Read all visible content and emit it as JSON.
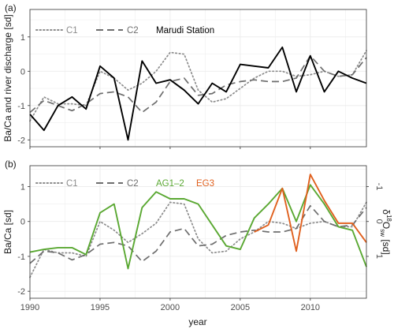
{
  "figure": {
    "xlabel": "year",
    "x_ticks": [
      1990,
      1995,
      2000,
      2005,
      2010
    ],
    "xlim": [
      1990,
      2014
    ]
  },
  "colors": {
    "c1": "#8c8c8c",
    "c2": "#6e6e6e",
    "marudi": "#000000",
    "ag": "#5aa832",
    "eg": "#e0601e",
    "grid": "#ebebeb",
    "frame": "#333333"
  },
  "chart_data": [
    {
      "panel_label": "(a)",
      "type": "line",
      "ylabel": "Ba/Ca and river discharge [sd]",
      "ylim": [
        -2.2,
        1.8
      ],
      "y_ticks": [
        -2,
        -1,
        0,
        1
      ],
      "grid": true,
      "legend_position": "top-left",
      "series": [
        {
          "name": "C1",
          "style": "dotted",
          "color_key": "c1",
          "x": [
            1990,
            1991,
            1992,
            1993,
            1994,
            1995,
            1996,
            1997,
            1998,
            1999,
            2000,
            2001,
            2002,
            2003,
            2004,
            2005,
            2006,
            2007,
            2008,
            2009,
            2010,
            2011,
            2012,
            2013,
            2014
          ],
          "y": [
            -1.45,
            -0.75,
            -0.95,
            -0.95,
            -1.0,
            0.0,
            -0.2,
            -0.55,
            -0.35,
            0.0,
            0.55,
            0.5,
            -0.55,
            -0.9,
            -0.8,
            -0.5,
            -0.2,
            0.0,
            0.0,
            -0.15,
            -0.1,
            0.0,
            -0.15,
            -0.1,
            0.6
          ]
        },
        {
          "name": "C2",
          "style": "dashed",
          "color_key": "c2",
          "x": [
            1990,
            1991,
            1992,
            1993,
            1994,
            1995,
            1996,
            1997,
            1998,
            1999,
            2000,
            2001,
            2002,
            2003,
            2004,
            2005,
            2006,
            2007,
            2008,
            2009,
            2010,
            2011,
            2012,
            2013,
            2014
          ],
          "y": [
            -1.2,
            -0.85,
            -1.0,
            -1.15,
            -0.95,
            -0.65,
            -0.6,
            -0.75,
            -1.2,
            -0.9,
            -0.3,
            -0.2,
            -0.7,
            -0.65,
            -0.4,
            -0.3,
            -0.25,
            -0.3,
            -0.3,
            -0.2,
            0.45,
            0.0,
            -0.15,
            -0.1,
            0.4
          ]
        },
        {
          "name": "Marudi Station",
          "style": "solid",
          "color_key": "marudi",
          "x": [
            1990,
            1991,
            1992,
            1993,
            1994,
            1995,
            1996,
            1997,
            1998,
            1999,
            2000,
            2001,
            2002,
            2003,
            2004,
            2005,
            2006,
            2007,
            2008,
            2009,
            2010,
            2011,
            2012,
            2013,
            2014
          ],
          "y": [
            -1.25,
            -1.72,
            -1.0,
            -0.75,
            -1.1,
            0.15,
            -0.2,
            -2.0,
            0.3,
            -0.35,
            -0.25,
            -0.55,
            -0.95,
            -0.35,
            -0.6,
            0.2,
            0.15,
            0.1,
            0.7,
            -0.6,
            0.45,
            -0.6,
            0.0,
            -0.2,
            -0.35
          ]
        }
      ]
    },
    {
      "panel_label": "(b)",
      "type": "line",
      "ylabel": "Ba/Ca [sd]",
      "y2label_parts": [
        "δ",
        "18",
        "O",
        "sw",
        " [sd]"
      ],
      "ylim": [
        -2.2,
        1.6
      ],
      "y_ticks": [
        -2,
        -1,
        0,
        1
      ],
      "y2_ticks": [
        "-1",
        "0",
        "1"
      ],
      "y2_tick_values": [
        1,
        0,
        -1
      ],
      "grid": true,
      "legend_position": "top",
      "series": [
        {
          "name": "C1",
          "style": "dotted",
          "color_key": "c1",
          "x": [
            1990,
            1991,
            1992,
            1993,
            1994,
            1995,
            1996,
            1997,
            1998,
            1999,
            2000,
            2001,
            2002,
            2003,
            2004,
            2005,
            2006,
            2007,
            2008,
            2009,
            2010,
            2011,
            2012,
            2013,
            2014
          ],
          "y": [
            -1.6,
            -0.8,
            -0.9,
            -0.9,
            -1.0,
            0.0,
            -0.25,
            -0.6,
            -0.35,
            -0.05,
            0.55,
            0.5,
            -0.5,
            -0.9,
            -0.85,
            -0.5,
            -0.3,
            0.0,
            -0.05,
            -0.2,
            -0.05,
            0.0,
            -0.15,
            -0.15,
            0.55
          ]
        },
        {
          "name": "C2",
          "style": "dashed",
          "color_key": "c2",
          "x": [
            1990,
            1991,
            1992,
            1993,
            1994,
            1995,
            1996,
            1997,
            1998,
            1999,
            2000,
            2001,
            2002,
            2003,
            2004,
            2005,
            2006,
            2007,
            2008,
            2009,
            2010,
            2011,
            2012,
            2013,
            2014
          ],
          "y": [
            -1.2,
            -0.85,
            -0.9,
            -1.1,
            -0.95,
            -0.65,
            -0.6,
            -0.7,
            -1.15,
            -0.85,
            -0.3,
            -0.2,
            -0.7,
            -0.65,
            -0.4,
            -0.3,
            -0.25,
            -0.3,
            -0.3,
            -0.2,
            0.45,
            0.0,
            -0.15,
            -0.1,
            0.4
          ]
        },
        {
          "name": "AG1–2",
          "style": "solid",
          "color_key": "ag",
          "x": [
            1990,
            1991,
            1992,
            1993,
            1994,
            1995,
            1996,
            1997,
            1998,
            1999,
            2000,
            2001,
            2002,
            2003,
            2004,
            2005,
            2006,
            2007,
            2008,
            2009,
            2010,
            2011,
            2012,
            2013,
            2014
          ],
          "y": [
            -0.88,
            -0.8,
            -0.75,
            -0.75,
            -0.95,
            0.25,
            0.5,
            -1.35,
            0.4,
            0.85,
            0.65,
            0.65,
            0.5,
            -0.1,
            -0.7,
            -0.8,
            0.1,
            0.5,
            0.95,
            0.0,
            1.05,
            0.5,
            -0.15,
            -0.25,
            -1.3
          ]
        },
        {
          "name": "EG3",
          "style": "solid",
          "color_key": "eg",
          "x": [
            2006,
            2007,
            2008,
            2009,
            2010,
            2011,
            2012,
            2013,
            2014
          ],
          "y": [
            -0.3,
            -0.1,
            0.95,
            -0.85,
            1.35,
            0.6,
            -0.05,
            -0.05,
            -0.6
          ]
        }
      ]
    }
  ]
}
